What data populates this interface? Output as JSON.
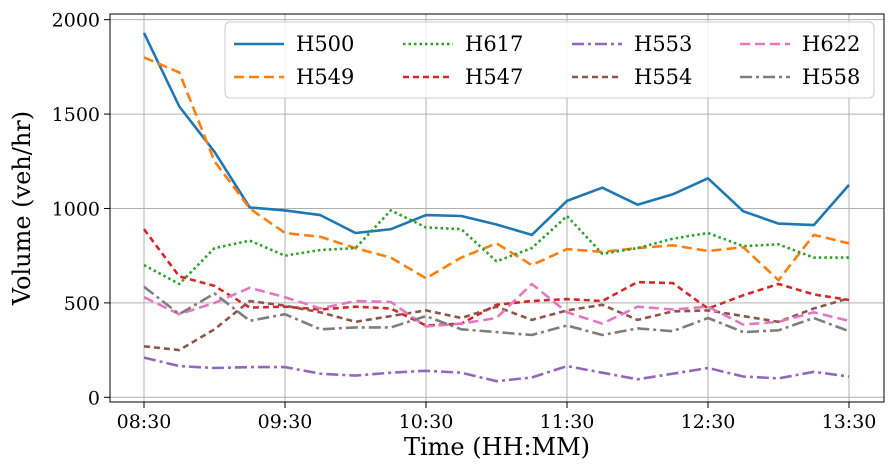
{
  "chart_data": {
    "type": "line",
    "title": "",
    "xlabel": "Time (HH:MM)",
    "ylabel": "Volume (veh/hr)",
    "x": [
      "08:30",
      "08:45",
      "09:00",
      "09:15",
      "09:30",
      "09:45",
      "10:00",
      "10:15",
      "10:30",
      "10:45",
      "11:00",
      "11:15",
      "11:30",
      "11:45",
      "12:00",
      "12:15",
      "12:30",
      "12:45",
      "13:00",
      "13:15",
      "13:30"
    ],
    "xticks": [
      "08:30",
      "09:30",
      "10:30",
      "11:30",
      "12:30",
      "13:30"
    ],
    "yticks": [
      0,
      500,
      1000,
      1500,
      2000
    ],
    "ylim": [
      -25,
      2030
    ],
    "grid": true,
    "legend": "top-right",
    "series": [
      {
        "name": "H500",
        "color": "#1f77b4",
        "dash": "solid",
        "values": [
          1930,
          1540,
          1300,
          1005,
          990,
          965,
          870,
          890,
          965,
          960,
          915,
          860,
          1040,
          1110,
          1020,
          1075,
          1160,
          985,
          920,
          912,
          1125
        ]
      },
      {
        "name": "H549",
        "color": "#ff7f0e",
        "dash": "dashed",
        "values": [
          1800,
          1720,
          1250,
          1000,
          870,
          850,
          790,
          740,
          630,
          740,
          815,
          700,
          785,
          770,
          790,
          805,
          775,
          795,
          620,
          860,
          815
        ]
      },
      {
        "name": "H617",
        "color": "#2ca02c",
        "dash": "dotted",
        "values": [
          700,
          600,
          790,
          830,
          750,
          780,
          790,
          990,
          900,
          890,
          720,
          790,
          960,
          760,
          790,
          840,
          870,
          800,
          810,
          740,
          740
        ]
      },
      {
        "name": "H547",
        "color": "#d62728",
        "dash": "densedash",
        "values": [
          890,
          640,
          590,
          475,
          480,
          465,
          480,
          470,
          380,
          390,
          490,
          510,
          520,
          510,
          610,
          605,
          470,
          540,
          600,
          545,
          515
        ]
      },
      {
        "name": "H553",
        "color": "#9467bd",
        "dash": "dashdot",
        "values": [
          210,
          165,
          155,
          160,
          160,
          125,
          115,
          130,
          140,
          130,
          85,
          105,
          165,
          130,
          95,
          125,
          155,
          110,
          100,
          135,
          110
        ]
      },
      {
        "name": "H554",
        "color": "#8c564b",
        "dash": "densedash",
        "values": [
          270,
          250,
          360,
          510,
          485,
          450,
          400,
          430,
          460,
          420,
          480,
          410,
          460,
          490,
          410,
          455,
          460,
          430,
          400,
          470,
          525
        ]
      },
      {
        "name": "H622",
        "color": "#e377c2",
        "dash": "dashed",
        "values": [
          530,
          440,
          500,
          580,
          530,
          470,
          510,
          505,
          375,
          390,
          420,
          600,
          450,
          390,
          480,
          465,
          480,
          385,
          400,
          450,
          405
        ]
      },
      {
        "name": "H558",
        "color": "#7f7f7f",
        "dash": "dashdot",
        "values": [
          585,
          440,
          550,
          405,
          440,
          360,
          370,
          370,
          430,
          360,
          345,
          330,
          380,
          330,
          365,
          350,
          420,
          345,
          355,
          420,
          350
        ]
      }
    ]
  }
}
